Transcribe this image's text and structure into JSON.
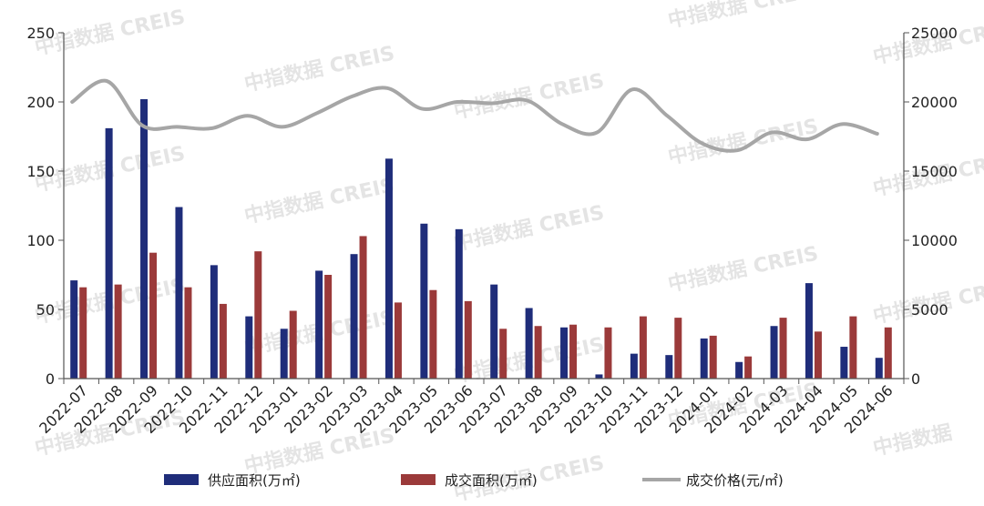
{
  "chart_data": {
    "type": "bar",
    "categories": [
      "2022-07",
      "2022-08",
      "2022-09",
      "2022-10",
      "2022-11",
      "2022-12",
      "2023-01",
      "2023-02",
      "2023-03",
      "2023-04",
      "2023-05",
      "2023-06",
      "2023-07",
      "2023-08",
      "2023-09",
      "2023-10",
      "2023-11",
      "2023-12",
      "2024-01",
      "2024-02",
      "2024-03",
      "2024-04",
      "2024-05",
      "2024-06"
    ],
    "series": [
      {
        "name": "供应面积(万㎡)",
        "kind": "bar",
        "axis": "left",
        "color": "#1f2d7a",
        "values": [
          71,
          181,
          202,
          124,
          82,
          45,
          36,
          78,
          90,
          159,
          112,
          108,
          68,
          51,
          37,
          3,
          18,
          17,
          29,
          12,
          38,
          69,
          23,
          15
        ]
      },
      {
        "name": "成交面积(万㎡)",
        "kind": "bar",
        "axis": "left",
        "color": "#9b3a3a",
        "values": [
          66,
          68,
          91,
          66,
          54,
          92,
          49,
          75,
          103,
          55,
          64,
          56,
          36,
          38,
          39,
          37,
          45,
          44,
          31,
          16,
          44,
          34,
          45,
          37
        ]
      },
      {
        "name": "成交价格(元/㎡)",
        "kind": "line",
        "axis": "right",
        "color": "#a6a6a6",
        "values": [
          20000,
          21500,
          18300,
          18200,
          18100,
          19000,
          18200,
          19200,
          20400,
          21000,
          19500,
          20000,
          19900,
          20100,
          18400,
          17800,
          20900,
          19000,
          17000,
          16500,
          17800,
          17300,
          18400,
          17700
        ]
      }
    ],
    "ylim_left": [
      0,
      250
    ],
    "yticks_left": [
      0,
      50,
      100,
      150,
      200,
      250
    ],
    "ylim_right": [
      0,
      25000
    ],
    "yticks_right": [
      0,
      5000,
      10000,
      15000,
      20000,
      25000
    ],
    "legend": "bottom",
    "grid": false
  },
  "watermark": {
    "text": "中指数据 CREIS",
    "short_text": "中指数据"
  }
}
